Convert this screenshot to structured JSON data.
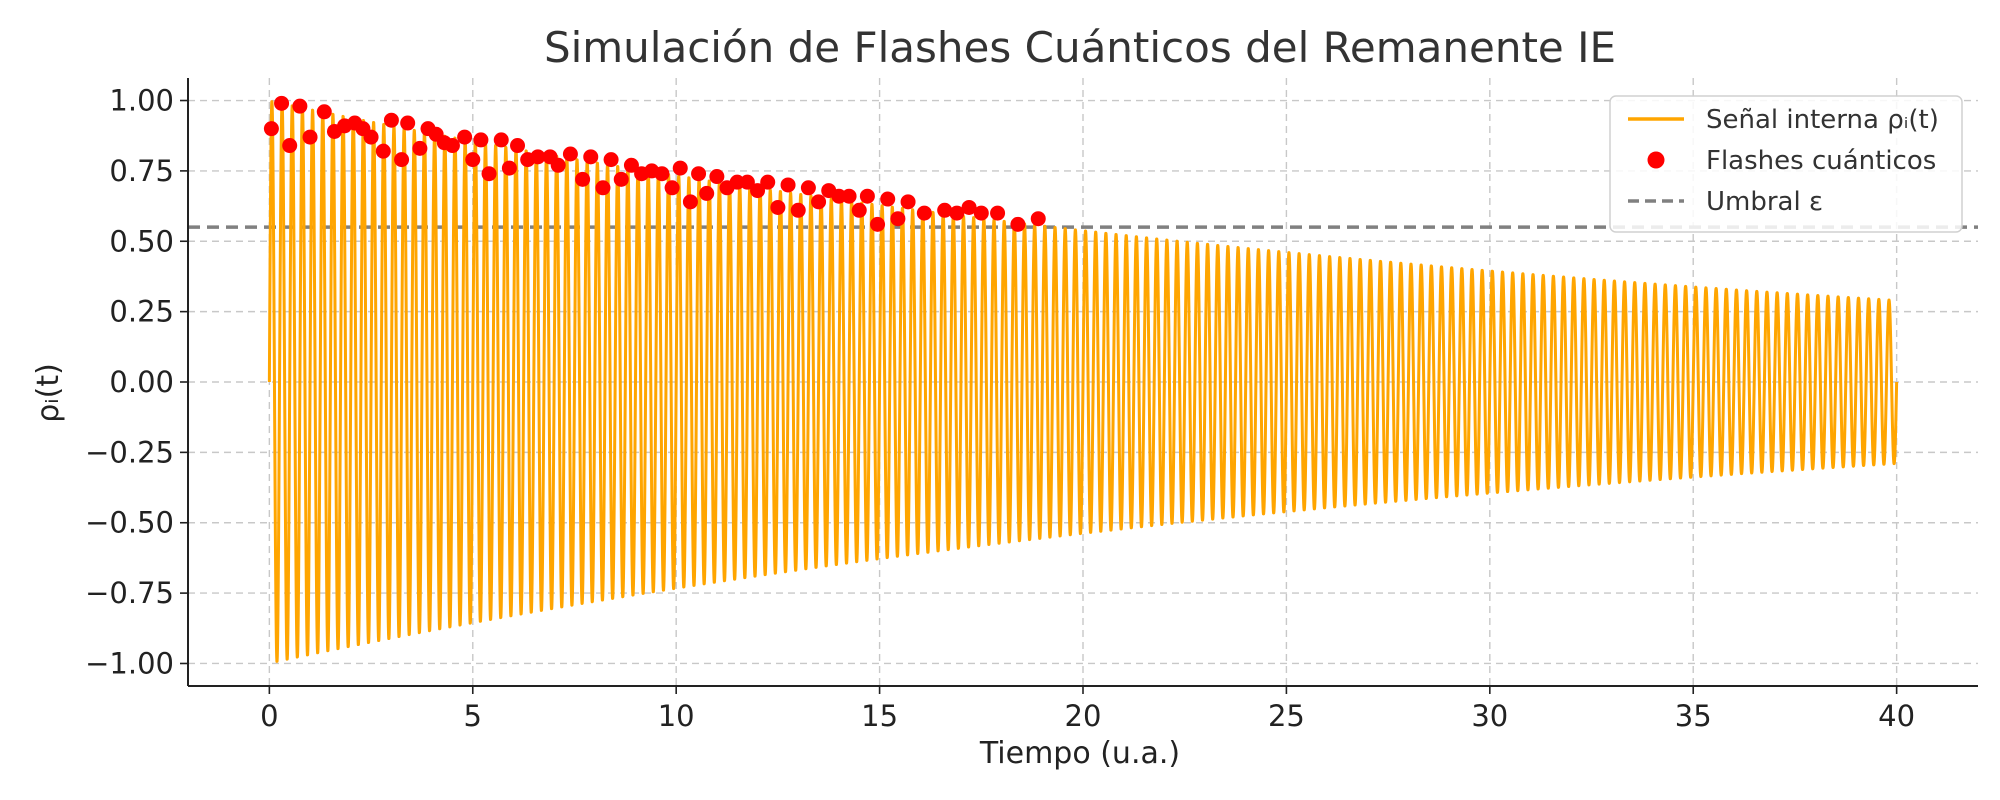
{
  "chart_data": {
    "type": "line",
    "title": "Simulación de Flashes Cuánticos del Remanente IE",
    "xlabel": "Tiempo (u.a.)",
    "ylabel": "ρᵢ(t)",
    "xlim": [
      -2,
      42
    ],
    "ylim": [
      -1.08,
      1.08
    ],
    "x_ticks": [
      0,
      5,
      10,
      15,
      20,
      25,
      30,
      35,
      40
    ],
    "y_ticks": [
      1.0,
      0.75,
      0.5,
      0.25,
      0.0,
      -0.25,
      -0.5,
      -0.75,
      -1.0
    ],
    "x_tick_labels": [
      "0",
      "5",
      "10",
      "15",
      "20",
      "25",
      "30",
      "35",
      "40"
    ],
    "y_tick_labels": [
      "1.00",
      "0.75",
      "0.50",
      "0.25",
      "0.00",
      "−0.25",
      "−0.50",
      "−0.75",
      "−1.00"
    ],
    "grid": true,
    "legend_position": "top-right",
    "signal": {
      "name": "Señal interna ρᵢ(t)",
      "color": "#FFA500",
      "t_start": 0,
      "t_end": 40,
      "peaks_count": 160,
      "envelope_start": 1.0,
      "envelope_end": 0.29
    },
    "flashes": {
      "name": "Flashes cuánticos",
      "color": "#FF0000",
      "x": [
        0.05,
        0.3,
        0.5,
        0.75,
        1.0,
        1.35,
        1.6,
        1.85,
        2.1,
        2.3,
        2.5,
        2.8,
        3.0,
        3.25,
        3.4,
        3.7,
        3.9,
        4.1,
        4.3,
        4.5,
        4.8,
        5.0,
        5.2,
        5.4,
        5.7,
        5.9,
        6.1,
        6.35,
        6.6,
        6.9,
        7.1,
        7.4,
        7.7,
        7.9,
        8.2,
        8.4,
        8.65,
        8.9,
        9.15,
        9.4,
        9.65,
        9.9,
        10.1,
        10.35,
        10.55,
        10.75,
        11.0,
        11.25,
        11.5,
        11.75,
        12.0,
        12.25,
        12.5,
        12.75,
        13.0,
        13.25,
        13.5,
        13.75,
        14.0,
        14.25,
        14.5,
        14.7,
        14.95,
        15.2,
        15.45,
        15.7,
        16.1,
        16.6,
        16.9,
        17.2,
        17.5,
        17.9,
        18.4,
        18.9
      ],
      "y": [
        0.9,
        0.99,
        0.84,
        0.98,
        0.87,
        0.96,
        0.89,
        0.91,
        0.92,
        0.9,
        0.87,
        0.82,
        0.93,
        0.79,
        0.92,
        0.83,
        0.9,
        0.88,
        0.85,
        0.84,
        0.87,
        0.79,
        0.86,
        0.74,
        0.86,
        0.76,
        0.84,
        0.79,
        0.8,
        0.8,
        0.77,
        0.81,
        0.72,
        0.8,
        0.69,
        0.79,
        0.72,
        0.77,
        0.74,
        0.75,
        0.74,
        0.69,
        0.76,
        0.64,
        0.74,
        0.67,
        0.73,
        0.69,
        0.71,
        0.71,
        0.68,
        0.71,
        0.62,
        0.7,
        0.61,
        0.69,
        0.64,
        0.68,
        0.66,
        0.66,
        0.61,
        0.66,
        0.56,
        0.65,
        0.58,
        0.64,
        0.6,
        0.61,
        0.6,
        0.62,
        0.6,
        0.6,
        0.56,
        0.58
      ]
    },
    "threshold": {
      "name": "Umbral ε",
      "value": 0.55,
      "color": "#808080"
    }
  }
}
